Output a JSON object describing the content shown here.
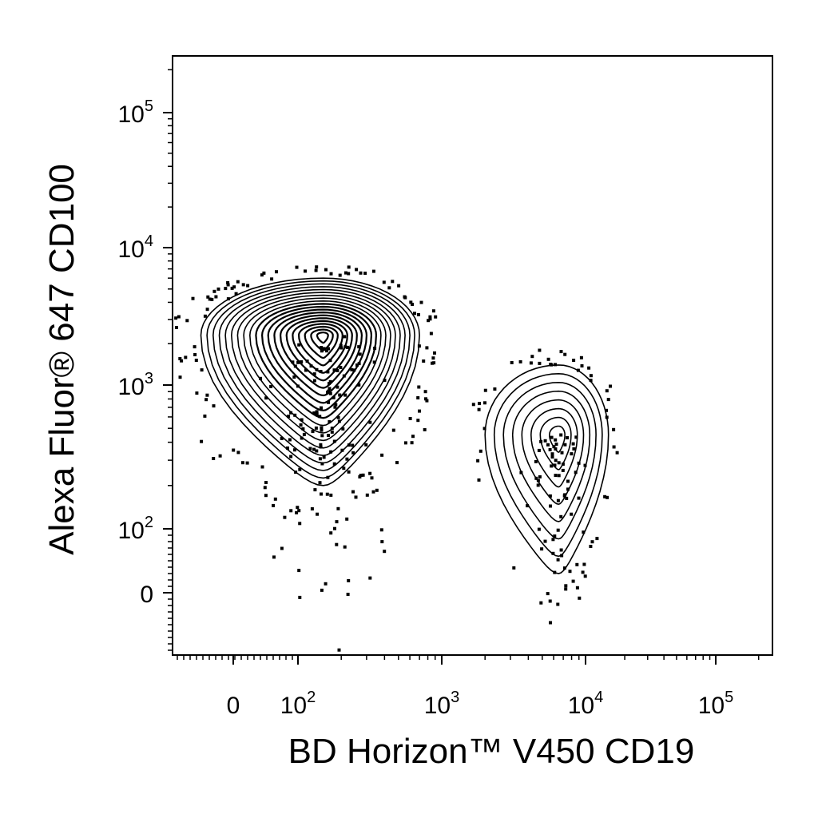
{
  "chart_data": {
    "type": "contour",
    "xlabel": "BD Horizon™ V450  CD19",
    "ylabel": "Alexa Fluor® 647  CD100",
    "x_scale": "biexponential",
    "y_scale": "biexponential",
    "xlim": [
      -150,
      250000
    ],
    "ylim": [
      -45,
      250000
    ],
    "x_ticks": [
      {
        "value": 0,
        "base": "0",
        "exp": ""
      },
      {
        "value": 100,
        "base": "10",
        "exp": "2"
      },
      {
        "value": 1000,
        "base": "10",
        "exp": "3"
      },
      {
        "value": 10000,
        "base": "10",
        "exp": "4"
      },
      {
        "value": 100000,
        "base": "10",
        "exp": "5"
      }
    ],
    "y_ticks": [
      {
        "value": 0,
        "base": "0",
        "exp": ""
      },
      {
        "value": 100,
        "base": "10",
        "exp": "2"
      },
      {
        "value": 1000,
        "base": "10",
        "exp": "3"
      },
      {
        "value": 10000,
        "base": "10",
        "exp": "4"
      },
      {
        "value": 100000,
        "base": "10",
        "exp": "5"
      }
    ],
    "grid": false,
    "legend": "none",
    "populations": [
      {
        "center": [
          150,
          2300
        ],
        "x_spread": [
          -80,
          700
        ],
        "y_spread": [
          200,
          6000
        ]
      },
      {
        "center": [
          6500,
          450
        ],
        "x_spread": [
          2000,
          15000
        ],
        "y_spread": [
          30,
          1400
        ]
      }
    ]
  }
}
